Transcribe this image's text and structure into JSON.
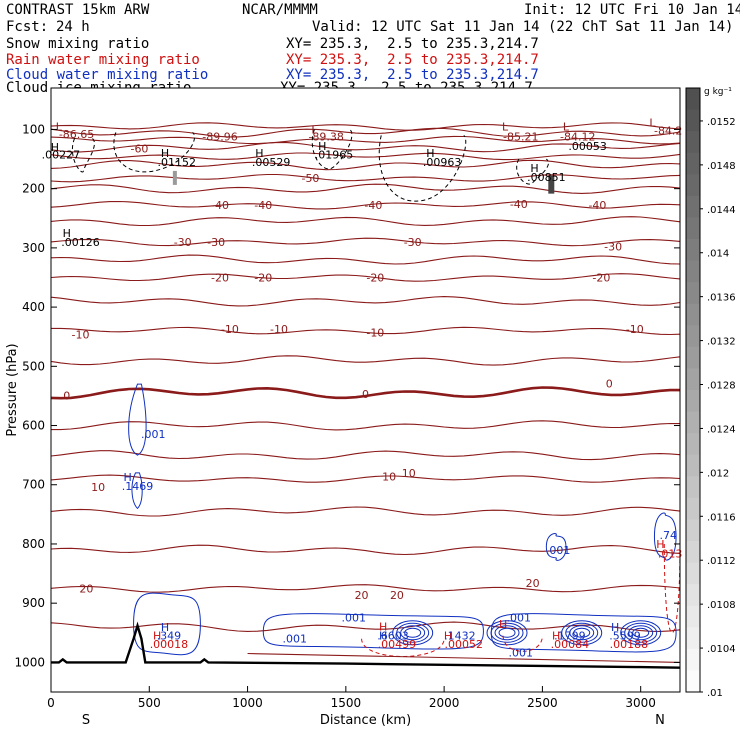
{
  "header": {
    "model": "CONTRAST 15km ARW",
    "center": "NCAR/MMMM",
    "init": "Init: 12 UTC Fri 10 Jan 14",
    "fcst_label": "Fcst:",
    "fcst_value": "24 h",
    "valid": "Valid: 12 UTC Sat 11 Jan 14 (22 ChT Sat 11 Jan 14)"
  },
  "fields": [
    {
      "name": "Snow mixing ratio",
      "xy": "XY= 235.3,  2.5 to 235.3,214.7",
      "color": "#000000"
    },
    {
      "name": "Rain water mixing ratio",
      "xy": "XY= 235.3,  2.5 to 235.3,214.7",
      "color": "#d01010"
    },
    {
      "name": "Cloud water mixing ratio",
      "xy": "XY= 235.3,  2.5 to 235.3,214.7",
      "color": "#1030c0"
    },
    {
      "name": "Cloud ice mixing ratio",
      "xy": "XY= 235.3,  2.5 to 235.3,214.7",
      "color": "#000000"
    }
  ],
  "chart_data": {
    "type": "cross-section contour",
    "xlabel": "Distance (km)",
    "ylabel": "Pressure (hPa)",
    "xlim": [
      0,
      3200
    ],
    "ylim": [
      1050,
      30
    ],
    "x_ticks": [
      0,
      500,
      1000,
      1500,
      2000,
      2500,
      3000
    ],
    "y_ticks": [
      100,
      200,
      300,
      400,
      500,
      600,
      700,
      800,
      900,
      1000
    ],
    "x_end_labels": {
      "left": "S",
      "right": "N"
    },
    "colorbar": {
      "unit": "g kg⁻¹",
      "ticks": [
        ".0152",
        ".0148",
        ".0144",
        ".014",
        ".0136",
        ".0132",
        ".0128",
        ".0124",
        ".012",
        ".0116",
        ".0112",
        ".0108",
        ".0104",
        ".01"
      ],
      "range": [
        0.01,
        0.0155
      ]
    },
    "temperature_contours": {
      "color": "#8b1a1a",
      "levels": [
        -80,
        -70,
        -60,
        -50,
        -40,
        -30,
        -20,
        -10,
        0,
        10,
        20
      ],
      "zero_line_bold": true,
      "labels": [
        {
          "text": "-60",
          "x": 450,
          "p": 132
        },
        {
          "text": "-50",
          "x": 1320,
          "p": 182
        },
        {
          "text": "-40",
          "x": 860,
          "p": 228
        },
        {
          "text": "-40",
          "x": 1080,
          "p": 228
        },
        {
          "text": "-40",
          "x": 1640,
          "p": 228
        },
        {
          "text": "-40",
          "x": 2380,
          "p": 226
        },
        {
          "text": "-40",
          "x": 2780,
          "p": 228
        },
        {
          "text": "-30",
          "x": 670,
          "p": 290
        },
        {
          "text": "-30",
          "x": 840,
          "p": 290
        },
        {
          "text": "-30",
          "x": 1840,
          "p": 290
        },
        {
          "text": "-30",
          "x": 2860,
          "p": 298
        },
        {
          "text": "-20",
          "x": 860,
          "p": 350
        },
        {
          "text": "-20",
          "x": 1080,
          "p": 350
        },
        {
          "text": "-20",
          "x": 1650,
          "p": 350
        },
        {
          "text": "-20",
          "x": 2800,
          "p": 350
        },
        {
          "text": "-10",
          "x": 150,
          "p": 446
        },
        {
          "text": "-10",
          "x": 910,
          "p": 437
        },
        {
          "text": "-10",
          "x": 1160,
          "p": 437
        },
        {
          "text": "-10",
          "x": 1650,
          "p": 443
        },
        {
          "text": "-10",
          "x": 2970,
          "p": 437
        },
        {
          "text": "0",
          "x": 80,
          "p": 549
        },
        {
          "text": "0",
          "x": 1600,
          "p": 547
        },
        {
          "text": "0",
          "x": 2840,
          "p": 529
        },
        {
          "text": "10",
          "x": 1720,
          "p": 686
        },
        {
          "text": "10",
          "x": 1820,
          "p": 680
        },
        {
          "text": "10",
          "x": 240,
          "p": 704
        },
        {
          "text": "20",
          "x": 180,
          "p": 875
        },
        {
          "text": "20",
          "x": 1580,
          "p": 886
        },
        {
          "text": "20",
          "x": 1760,
          "p": 886
        },
        {
          "text": "20",
          "x": 2450,
          "p": 866
        }
      ]
    },
    "annotations": [
      {
        "text": "L",
        "x": 40,
        "p": 95,
        "color": "#8b1a1a"
      },
      {
        "text": "-86.65",
        "x": 130,
        "p": 108,
        "color": "#8b1a1a"
      },
      {
        "text": "-89.96",
        "x": 860,
        "p": 112,
        "color": "#8b1a1a"
      },
      {
        "text": "L",
        "x": 1340,
        "p": 100,
        "color": "#8b1a1a"
      },
      {
        "text": "-89.38",
        "x": 1400,
        "p": 112,
        "color": "#8b1a1a"
      },
      {
        "text": "L",
        "x": 2310,
        "p": 95,
        "color": "#8b1a1a"
      },
      {
        "text": "-85.21",
        "x": 2390,
        "p": 112,
        "color": "#8b1a1a"
      },
      {
        "text": "L",
        "x": 2620,
        "p": 95,
        "color": "#8b1a1a"
      },
      {
        "text": "-84.12",
        "x": 2680,
        "p": 112,
        "color": "#8b1a1a"
      },
      {
        "text": "L",
        "x": 3060,
        "p": 88,
        "color": "#8b1a1a"
      },
      {
        "text": "-84.2",
        "x": 3140,
        "p": 102,
        "color": "#8b1a1a"
      },
      {
        "text": "H",
        "x": 20,
        "p": 130,
        "color": "#000000"
      },
      {
        "text": ".00227",
        "x": 50,
        "p": 142,
        "color": "#000000"
      },
      {
        "text": "H",
        "x": 580,
        "p": 140,
        "color": "#000000"
      },
      {
        "text": ".01152",
        "x": 640,
        "p": 155,
        "color": "#000000"
      },
      {
        "text": "H",
        "x": 1060,
        "p": 140,
        "color": "#000000"
      },
      {
        "text": ".00529",
        "x": 1120,
        "p": 155,
        "color": "#000000"
      },
      {
        "text": "H",
        "x": 1380,
        "p": 128,
        "color": "#000000"
      },
      {
        "text": ".01965",
        "x": 1440,
        "p": 142,
        "color": "#000000"
      },
      {
        "text": ".00053",
        "x": 2730,
        "p": 128,
        "color": "#000000"
      },
      {
        "text": "H",
        "x": 1930,
        "p": 140,
        "color": "#000000"
      },
      {
        "text": ".00963",
        "x": 1990,
        "p": 155,
        "color": "#000000"
      },
      {
        "text": "H",
        "x": 2460,
        "p": 165,
        "color": "#000000"
      },
      {
        "text": ".00851",
        "x": 2520,
        "p": 180,
        "color": "#000000"
      },
      {
        "text": "H",
        "x": 80,
        "p": 275,
        "color": "#000000"
      },
      {
        "text": ".00126",
        "x": 150,
        "p": 290,
        "color": "#000000"
      },
      {
        "text": ".001",
        "x": 520,
        "p": 614,
        "color": "#1030c0"
      },
      {
        "text": "H",
        "x": 390,
        "p": 687,
        "color": "#1030c0"
      },
      {
        "text": ".1469",
        "x": 440,
        "p": 702,
        "color": "#1030c0"
      },
      {
        "text": "H",
        "x": 580,
        "p": 940,
        "color": "#1030c0"
      },
      {
        "text": ".349",
        "x": 600,
        "p": 955,
        "color": "#1030c0"
      },
      {
        "text": "H",
        "x": 540,
        "p": 955,
        "color": "#d01010"
      },
      {
        "text": ".00018",
        "x": 600,
        "p": 969,
        "color": "#d01010"
      },
      {
        "text": ".001",
        "x": 1240,
        "p": 960,
        "color": "#1030c0"
      },
      {
        "text": ".001",
        "x": 1540,
        "p": 924,
        "color": "#1030c0"
      },
      {
        "text": "H",
        "x": 1690,
        "p": 939,
        "color": "#d01010"
      },
      {
        "text": ".6603",
        "x": 1740,
        "p": 955,
        "color": "#1030c0"
      },
      {
        "text": "H",
        "x": 1690,
        "p": 955,
        "color": "#1030c0"
      },
      {
        "text": ".00499",
        "x": 1760,
        "p": 969,
        "color": "#d01010"
      },
      {
        "text": "H",
        "x": 2020,
        "p": 955,
        "color": "#d01010"
      },
      {
        "text": ".1432",
        "x": 2080,
        "p": 955,
        "color": "#1030c0"
      },
      {
        "text": ".00052",
        "x": 2100,
        "p": 969,
        "color": "#d01010"
      },
      {
        "text": ".001",
        "x": 2380,
        "p": 924,
        "color": "#1030c0"
      },
      {
        "text": "H",
        "x": 2300,
        "p": 935,
        "color": "#d01010"
      },
      {
        "text": ".001",
        "x": 2390,
        "p": 983,
        "color": "#1030c0"
      },
      {
        "text": "H",
        "x": 2570,
        "p": 955,
        "color": "#d01010"
      },
      {
        "text": ".1799",
        "x": 2640,
        "p": 955,
        "color": "#1030c0"
      },
      {
        "text": ".00084",
        "x": 2640,
        "p": 969,
        "color": "#d01010"
      },
      {
        "text": "H",
        "x": 2870,
        "p": 940,
        "color": "#1030c0"
      },
      {
        "text": ".5599",
        "x": 2920,
        "p": 955,
        "color": "#1030c0"
      },
      {
        "text": ".00188",
        "x": 2940,
        "p": 969,
        "color": "#d01010"
      },
      {
        "text": ".001",
        "x": 2580,
        "p": 810,
        "color": "#1030c0"
      },
      {
        "text": ".74",
        "x": 3140,
        "p": 785,
        "color": "#1030c0"
      },
      {
        "text": "H",
        "x": 3100,
        "p": 800,
        "color": "#d01010"
      },
      {
        "text": ".013",
        "x": 3150,
        "p": 816,
        "color": "#d01010"
      }
    ]
  }
}
